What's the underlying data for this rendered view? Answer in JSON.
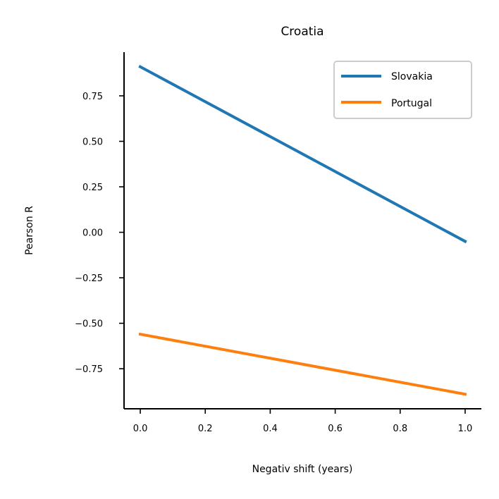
{
  "chart_data": {
    "type": "line",
    "title": "Croatia",
    "xlabel": "Negativ shift (years)",
    "ylabel": "Pearson R",
    "x": [
      0.0,
      1.0
    ],
    "xlim": [
      -0.05,
      1.05
    ],
    "ylim": [
      -0.97,
      0.99
    ],
    "xticks": [
      0.0,
      0.2,
      0.4,
      0.6,
      0.8,
      1.0
    ],
    "xtick_labels": [
      "0.0",
      "0.2",
      "0.4",
      "0.6",
      "0.8",
      "1.0"
    ],
    "yticks": [
      0.75,
      0.5,
      0.25,
      0.0,
      -0.25,
      -0.5,
      -0.75
    ],
    "ytick_labels": [
      "0.75",
      "0.50",
      "0.25",
      "0.00",
      "−0.25",
      "−0.50",
      "−0.75"
    ],
    "grid": false,
    "legend_position": "top-right",
    "series": [
      {
        "name": "Slovakia",
        "color": "#1f77b4",
        "values": [
          0.91,
          -0.05
        ]
      },
      {
        "name": "Portugal",
        "color": "#ff7f0e",
        "values": [
          -0.56,
          -0.89
        ]
      }
    ]
  }
}
